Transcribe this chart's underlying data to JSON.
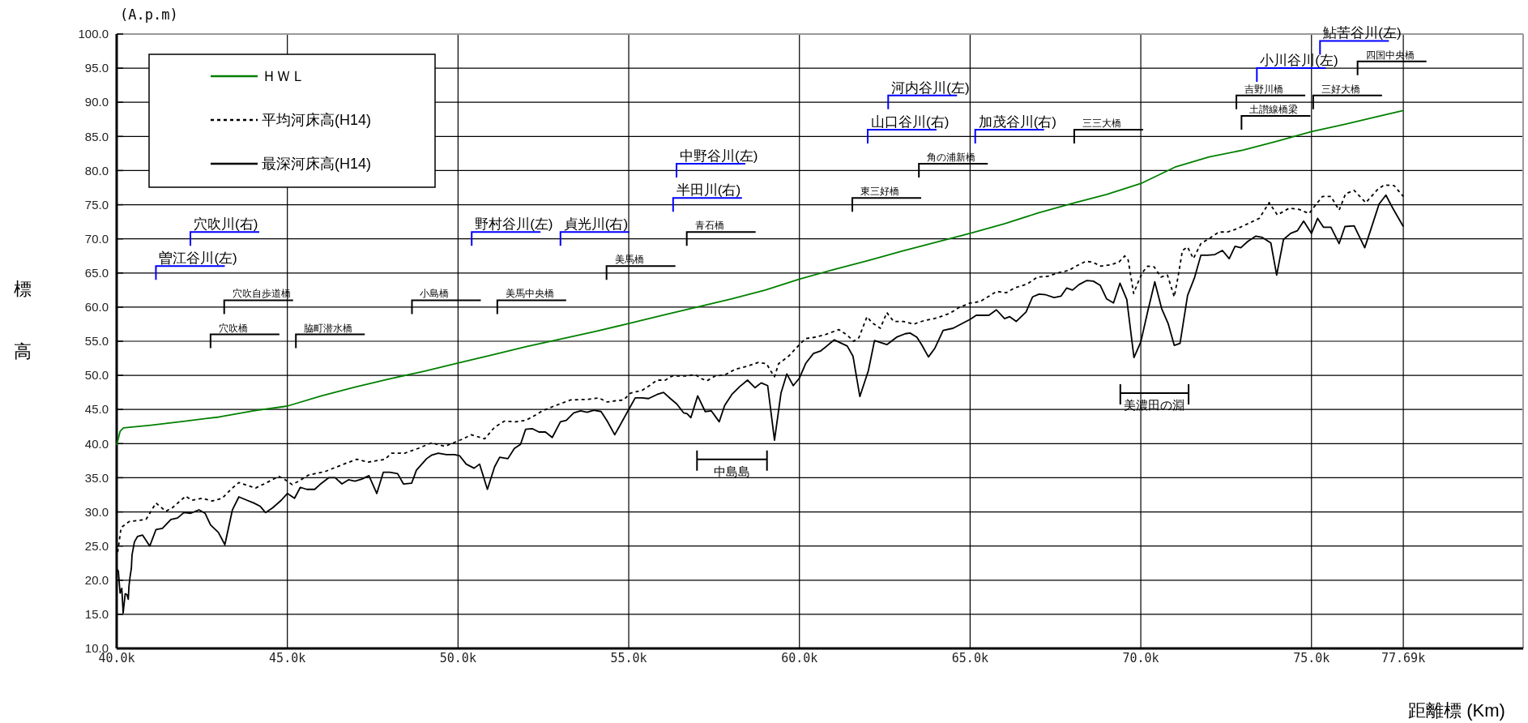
{
  "chart_data": {
    "type": "line",
    "xlabel": "距離標 (Km)",
    "ylabel": "標高",
    "xlim": [
      40,
      81.2
    ],
    "ylim": [
      10,
      100
    ],
    "xticks": [
      {
        "value": 40,
        "label": "40.0k"
      },
      {
        "value": 45,
        "label": "45.0k"
      },
      {
        "value": 50,
        "label": "50.0k"
      },
      {
        "value": 55,
        "label": "55.0k"
      },
      {
        "value": 60,
        "label": "60.0k"
      },
      {
        "value": 65,
        "label": "65.0k"
      },
      {
        "value": 70,
        "label": "70.0k"
      },
      {
        "value": 75,
        "label": "75.0k"
      },
      {
        "value": 77.69,
        "label": "77.69k"
      }
    ],
    "yticks": [
      {
        "value": 10,
        "label": "10.0"
      },
      {
        "value": 15,
        "label": "15.0"
      },
      {
        "value": 20,
        "label": "20.0"
      },
      {
        "value": 25,
        "label": "25.0"
      },
      {
        "value": 30,
        "label": "30.0"
      },
      {
        "value": 35,
        "label": "35.0"
      },
      {
        "value": 40,
        "label": "40.0"
      },
      {
        "value": 45,
        "label": "45.0"
      },
      {
        "value": 50,
        "label": "50.0"
      },
      {
        "value": 55,
        "label": "55.0"
      },
      {
        "value": 60,
        "label": "60.0"
      },
      {
        "value": 65,
        "label": "65.0"
      },
      {
        "value": 70,
        "label": "70.0"
      },
      {
        "value": 75,
        "label": "75.0"
      },
      {
        "value": 80,
        "label": "80.0"
      },
      {
        "value": 85,
        "label": "85.0"
      },
      {
        "value": 90,
        "label": "90.0"
      },
      {
        "value": 95,
        "label": "95.0"
      },
      {
        "value": 100,
        "label": "100.0"
      }
    ],
    "grid": true,
    "legend": "top left",
    "marker": "none",
    "series": [
      {
        "name": "ＨＷＬ",
        "color": "#008000",
        "line_style": "solid",
        "x": [
          40.0,
          40.1,
          40.2,
          41,
          42,
          43,
          44,
          45,
          46,
          47,
          48,
          49,
          50,
          51,
          52,
          53,
          54,
          55,
          56,
          57,
          58,
          59,
          60,
          61,
          62,
          63,
          64,
          65,
          66,
          67,
          68,
          69,
          70,
          71,
          72,
          73,
          74,
          75,
          76,
          77,
          77.69
        ],
        "values": [
          39.8,
          41.8,
          42.3,
          42.7,
          43.3,
          43.9,
          44.8,
          45.5,
          47.0,
          48.3,
          49.5,
          50.6,
          51.8,
          53.0,
          54.2,
          55.3,
          56.4,
          57.6,
          58.8,
          60.0,
          61.2,
          62.5,
          64.1,
          65.5,
          66.8,
          68.2,
          69.5,
          70.8,
          72.2,
          73.8,
          75.2,
          76.5,
          78.1,
          80.5,
          82.0,
          83.0,
          84.3,
          85.7,
          86.8,
          88.0,
          88.8
        ]
      },
      {
        "name": "平均河床高(H14)",
        "color": "#000000",
        "line_style": "dotted",
        "x": [
          40.03,
          40.13,
          40.37,
          40.86,
          41.15,
          41.44,
          41.63,
          42.02,
          42.2,
          42.5,
          42.8,
          43.09,
          43.39,
          43.58,
          43.87,
          44.07,
          44.36,
          44.75,
          44.94,
          45.14,
          45.33,
          45.62,
          46.1,
          46.6,
          47.03,
          47.37,
          47.86,
          48.05,
          48.44,
          48.83,
          49.22,
          49.61,
          50.1,
          50.39,
          50.78,
          51.07,
          51.36,
          51.69,
          51.98,
          52.17,
          52.47,
          52.81,
          53.3,
          53.83,
          54.12,
          54.37,
          54.66,
          54.85,
          55.05,
          55.39,
          55.58,
          55.83,
          56.07,
          56.27,
          56.66,
          56.95,
          57.14,
          57.29,
          57.53,
          57.83,
          58.12,
          58.51,
          58.8,
          59.04,
          59.14,
          59.27,
          59.39,
          59.68,
          60.0,
          60.18,
          60.48,
          60.77,
          61.16,
          61.4,
          61.59,
          61.74,
          61.98,
          62.13,
          62.37,
          62.56,
          62.76,
          63.05,
          63.34,
          63.64,
          64.02,
          64.41,
          64.66,
          65.0,
          65.29,
          65.78,
          66.06,
          66.3,
          66.68,
          66.97,
          67.27,
          67.56,
          67.9,
          68.14,
          68.39,
          68.58,
          68.83,
          69.12,
          69.36,
          69.53,
          69.63,
          69.79,
          69.9,
          70.05,
          70.2,
          70.39,
          70.59,
          70.78,
          70.98,
          71.09,
          71.22,
          71.37,
          71.54,
          71.76,
          72.05,
          72.29,
          72.54,
          72.83,
          73.13,
          73.47,
          73.76,
          74.0,
          74.35,
          74.64,
          74.93,
          75.08,
          75.32,
          75.57,
          75.81,
          76.0,
          76.25,
          76.59,
          76.93,
          77.13,
          77.42,
          77.69
        ],
        "values": [
          24.1,
          27.7,
          28.6,
          28.9,
          31.3,
          30.1,
          30.6,
          32.3,
          31.7,
          32.0,
          31.6,
          32.0,
          33.5,
          34.3,
          33.8,
          33.5,
          34.2,
          35.2,
          34.7,
          34.0,
          34.5,
          35.4,
          35.9,
          36.9,
          37.7,
          37.3,
          37.7,
          38.6,
          38.6,
          39.3,
          40.1,
          39.6,
          40.6,
          41.3,
          40.7,
          42.4,
          43.3,
          43.2,
          43.4,
          43.9,
          44.8,
          45.5,
          46.4,
          46.5,
          46.7,
          46.1,
          46.3,
          46.4,
          47.4,
          47.8,
          48.4,
          49.3,
          49.3,
          49.9,
          49.9,
          50.1,
          49.5,
          49.2,
          49.9,
          50.1,
          50.9,
          51.4,
          51.9,
          51.7,
          50.8,
          49.8,
          51.7,
          52.8,
          54.5,
          55.4,
          55.6,
          56.0,
          56.7,
          55.9,
          55.0,
          55.5,
          58.6,
          57.7,
          56.9,
          59.2,
          57.9,
          57.9,
          57.5,
          58.0,
          58.4,
          59.1,
          59.9,
          60.6,
          60.8,
          62.3,
          62.1,
          62.8,
          63.4,
          64.4,
          64.5,
          65.0,
          65.4,
          66.1,
          66.7,
          66.6,
          66.0,
          66.2,
          66.6,
          67.5,
          66.9,
          62.0,
          63.4,
          65.1,
          66.0,
          65.9,
          64.4,
          64.7,
          61.5,
          64.4,
          68.3,
          68.8,
          67.1,
          69.3,
          70.2,
          71.0,
          71.0,
          71.5,
          72.2,
          73.0,
          75.3,
          73.5,
          74.5,
          74.3,
          73.7,
          74.7,
          76.2,
          76.2,
          74.2,
          76.6,
          77.1,
          75.3,
          77.2,
          77.9,
          77.8,
          76.2
        ]
      },
      {
        "name": "最深河床高(H14)",
        "color": "#000000",
        "line_style": "solid",
        "x": [
          40.0,
          40.05,
          40.1,
          40.15,
          40.19,
          40.25,
          40.3,
          40.34,
          40.36,
          40.39,
          40.43,
          40.45,
          40.52,
          40.61,
          40.76,
          40.97,
          41.15,
          41.34,
          41.59,
          41.78,
          41.97,
          42.17,
          42.41,
          42.59,
          42.75,
          42.98,
          43.17,
          43.39,
          43.58,
          43.82,
          44.02,
          44.21,
          44.36,
          44.57,
          44.82,
          45.0,
          45.21,
          45.38,
          45.57,
          45.8,
          46.0,
          46.21,
          46.4,
          46.6,
          46.79,
          46.98,
          47.18,
          47.39,
          47.62,
          47.81,
          48.0,
          48.23,
          48.4,
          48.64,
          48.78,
          49.08,
          49.22,
          49.42,
          49.66,
          49.9,
          50.05,
          50.24,
          50.47,
          50.63,
          50.86,
          51.07,
          51.22,
          51.46,
          51.65,
          51.83,
          51.98,
          52.17,
          52.37,
          52.56,
          52.76,
          53.0,
          53.17,
          53.39,
          53.59,
          53.78,
          53.98,
          54.19,
          54.37,
          54.59,
          55.0,
          55.19,
          55.39,
          55.58,
          55.83,
          56.02,
          56.22,
          56.41,
          56.61,
          56.71,
          56.82,
          57.02,
          57.24,
          57.42,
          57.65,
          57.81,
          58.02,
          58.24,
          58.48,
          58.7,
          58.88,
          59.07,
          59.27,
          59.46,
          59.63,
          59.82,
          60.0,
          60.19,
          60.41,
          60.63,
          61.02,
          61.4,
          61.57,
          61.77,
          62.02,
          62.2,
          62.56,
          62.85,
          63.1,
          63.24,
          63.44,
          63.58,
          63.78,
          63.97,
          64.21,
          64.5,
          65.0,
          65.18,
          65.55,
          65.77,
          66.01,
          66.16,
          66.35,
          66.64,
          66.83,
          67.02,
          67.22,
          67.46,
          67.66,
          67.83,
          68.0,
          68.19,
          68.42,
          68.61,
          68.81,
          69.0,
          69.2,
          69.39,
          69.59,
          69.8,
          70.0,
          70.2,
          70.41,
          70.61,
          70.8,
          70.98,
          71.15,
          71.37,
          71.58,
          71.76,
          71.95,
          72.17,
          72.39,
          72.59,
          72.76,
          72.93,
          73.13,
          73.37,
          73.56,
          73.81,
          73.98,
          74.18,
          74.39,
          74.59,
          74.77,
          75.0,
          75.18,
          75.35,
          75.57,
          75.81,
          75.98,
          76.25,
          76.56,
          76.74,
          76.98,
          77.18,
          77.38,
          77.69
        ],
        "values": [
          21.7,
          21.3,
          18.1,
          18.8,
          15.2,
          18.0,
          17.9,
          17.2,
          19.1,
          20.4,
          21.7,
          23.7,
          25.6,
          26.4,
          26.6,
          25.0,
          27.4,
          27.6,
          28.9,
          29.1,
          29.9,
          29.8,
          30.3,
          29.8,
          28.1,
          27.0,
          25.2,
          30.3,
          32.2,
          31.7,
          31.3,
          30.8,
          29.9,
          30.6,
          31.7,
          32.7,
          32.0,
          33.6,
          33.3,
          33.3,
          34.2,
          35.0,
          35.0,
          34.1,
          34.7,
          34.5,
          34.8,
          35.3,
          32.7,
          35.8,
          35.8,
          35.6,
          34.1,
          34.2,
          36.1,
          37.8,
          38.3,
          38.6,
          38.4,
          38.4,
          38.2,
          37.0,
          36.4,
          37.0,
          33.3,
          36.6,
          38.0,
          37.8,
          39.3,
          39.9,
          42.1,
          42.2,
          41.7,
          41.7,
          40.9,
          43.2,
          43.4,
          44.5,
          44.8,
          44.6,
          44.9,
          44.7,
          43.3,
          41.3,
          45.0,
          46.7,
          46.7,
          46.6,
          47.2,
          47.5,
          46.6,
          45.8,
          44.5,
          44.4,
          43.8,
          47.0,
          44.7,
          44.8,
          43.2,
          45.6,
          47.2,
          48.3,
          49.3,
          48.2,
          48.9,
          48.5,
          40.5,
          47.4,
          50.2,
          48.5,
          49.6,
          51.8,
          53.2,
          53.6,
          55.2,
          54.3,
          52.8,
          46.9,
          50.7,
          55.1,
          54.5,
          55.6,
          56.1,
          56.2,
          55.6,
          54.5,
          52.7,
          54.0,
          56.6,
          56.9,
          58.2,
          58.8,
          58.8,
          59.6,
          58.3,
          58.6,
          57.9,
          59.3,
          61.5,
          61.9,
          61.8,
          61.4,
          61.6,
          62.8,
          62.5,
          63.3,
          63.9,
          63.8,
          63.2,
          61.2,
          60.6,
          63.5,
          61.1,
          52.6,
          54.9,
          59.3,
          63.7,
          59.8,
          57.6,
          54.4,
          54.7,
          61.7,
          64.4,
          67.6,
          67.6,
          67.7,
          68.3,
          67.1,
          68.9,
          68.7,
          69.6,
          70.4,
          70.2,
          69.4,
          64.7,
          69.9,
          70.8,
          71.2,
          72.6,
          70.8,
          73.0,
          71.7,
          71.7,
          69.3,
          71.8,
          71.9,
          68.7,
          71.4,
          75.1,
          76.4,
          74.5,
          71.8
        ]
      }
    ],
    "annotations": [
      "(A.p.m)",
      "曽江谷川(左)",
      "穴吹川(右)",
      "野村谷川(左)",
      "貞光川(右)",
      "中野谷川(左)",
      "半田川(右)",
      "河内谷川(左)",
      "山口谷川(右)",
      "加茂谷川(右)",
      "小川谷川(左)",
      "鮎苦谷川(左)",
      "穴吹自歩道橋",
      "穴吹橋",
      "脇町潜水橋",
      "小島橋",
      "美馬中央橋",
      "美馬橋",
      "青石橋",
      "東三好橋",
      "角の浦新橋",
      "三三大橋",
      "吉野川橋",
      "土讃線橋梁",
      "三好大橋",
      "四国中央橋",
      "中島島",
      "美濃田の淵"
    ]
  }
}
